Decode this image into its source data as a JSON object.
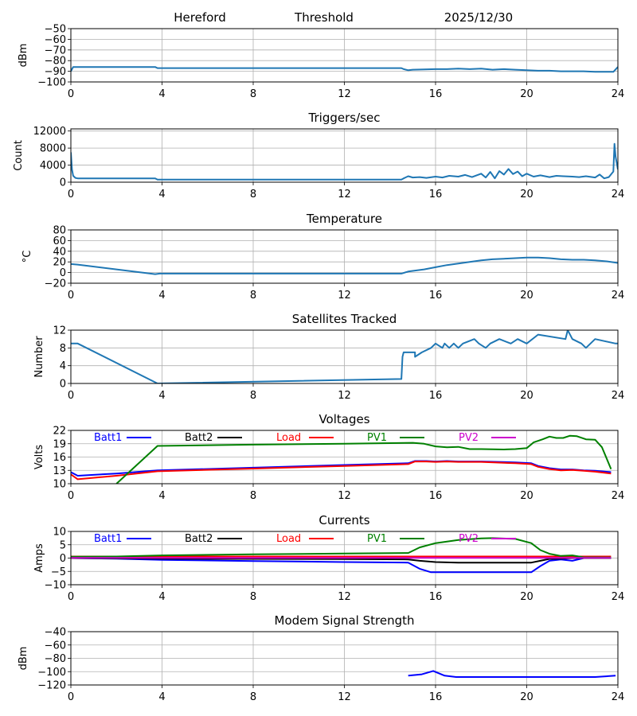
{
  "header": {
    "site": "Hereford",
    "mode": "Threshold",
    "date": "2025/12/30"
  },
  "chart_data": [
    {
      "id": "threshold",
      "type": "line",
      "title": "",
      "xlabel": "",
      "ylabel": "dBm",
      "xlim": [
        0,
        24
      ],
      "ylim": [
        -100,
        -50
      ],
      "xticks": [
        0,
        4,
        8,
        12,
        16,
        20,
        24
      ],
      "yticks": [
        -100,
        -90,
        -80,
        -70,
        -60,
        -50
      ],
      "ytick_labels": [
        "−100",
        "−90",
        "−80",
        "−70",
        "−60",
        "−50"
      ],
      "grid": true,
      "series": [
        {
          "name": "Threshold",
          "color": "#1f77b4",
          "x": [
            0,
            0.1,
            0.2,
            1,
            2,
            3,
            3.7,
            3.8,
            6,
            9,
            12,
            14.5,
            14.6,
            14.8,
            15,
            16,
            16.5,
            17,
            17.5,
            18,
            18.5,
            19,
            19.5,
            20,
            20.5,
            21,
            21.5,
            22,
            22.5,
            23,
            23.5,
            23.8,
            24
          ],
          "y": [
            -90,
            -86,
            -86,
            -86,
            -86,
            -86,
            -86,
            -87,
            -87,
            -87,
            -87,
            -87,
            -88,
            -89,
            -88.5,
            -88,
            -88,
            -87.5,
            -88,
            -87.5,
            -88.5,
            -88,
            -88.5,
            -89,
            -89.5,
            -89.5,
            -90,
            -90,
            -90,
            -90.5,
            -90.5,
            -90.5,
            -86
          ]
        }
      ]
    },
    {
      "id": "triggers",
      "type": "line",
      "title": "Triggers/sec",
      "xlabel": "",
      "ylabel": "Count",
      "xlim": [
        0,
        24
      ],
      "ylim": [
        0,
        12500
      ],
      "xticks": [
        0,
        4,
        8,
        12,
        16,
        20,
        24
      ],
      "yticks": [
        0,
        4000,
        8000,
        12000
      ],
      "ytick_labels": [
        "0",
        "4000",
        "8000",
        "12000"
      ],
      "grid": true,
      "series": [
        {
          "name": "Triggers",
          "color": "#1f77b4",
          "x": [
            0,
            0.05,
            0.1,
            0.2,
            0.3,
            1,
            2,
            3,
            3.7,
            3.8,
            6,
            9,
            12,
            14.5,
            14.6,
            14.8,
            15,
            15.3,
            15.6,
            16,
            16.3,
            16.6,
            17,
            17.3,
            17.6,
            18,
            18.2,
            18.4,
            18.6,
            18.8,
            19,
            19.2,
            19.4,
            19.6,
            19.8,
            20,
            20.3,
            20.6,
            21,
            21.3,
            21.6,
            22,
            22.3,
            22.6,
            23,
            23.2,
            23.4,
            23.6,
            23.8,
            23.85,
            23.9,
            24
          ],
          "y": [
            7000,
            3000,
            1500,
            1000,
            900,
            900,
            900,
            900,
            900,
            600,
            600,
            600,
            600,
            600,
            900,
            1400,
            1100,
            1200,
            1000,
            1300,
            1100,
            1500,
            1300,
            1700,
            1200,
            2000,
            1100,
            2400,
            900,
            2600,
            1800,
            3100,
            1900,
            2500,
            1400,
            2000,
            1300,
            1600,
            1200,
            1500,
            1400,
            1300,
            1200,
            1400,
            1100,
            1800,
            900,
            1200,
            2500,
            9000,
            6000,
            3000
          ]
        }
      ]
    },
    {
      "id": "temperature",
      "type": "line",
      "title": "Temperature",
      "xlabel": "",
      "ylabel": "°C",
      "xlim": [
        0,
        24
      ],
      "ylim": [
        -20,
        80
      ],
      "xticks": [
        0,
        4,
        8,
        12,
        16,
        20,
        24
      ],
      "yticks": [
        -20,
        0,
        20,
        40,
        60,
        80
      ],
      "ytick_labels": [
        "−20",
        "0",
        "20",
        "40",
        "60",
        "80"
      ],
      "grid": true,
      "series": [
        {
          "name": "Temperature",
          "color": "#1f77b4",
          "x": [
            0,
            0.3,
            3.7,
            3.9,
            6,
            9,
            12,
            14.5,
            14.8,
            15.5,
            16,
            16.5,
            17,
            17.5,
            18,
            18.5,
            19,
            19.5,
            20,
            20.5,
            21,
            21.5,
            22,
            22.5,
            23,
            23.5,
            24
          ],
          "y": [
            16,
            15,
            -3,
            -2,
            -2,
            -2,
            -2,
            -2,
            2,
            6,
            10,
            14,
            17,
            20,
            23,
            25,
            26,
            27,
            28,
            28,
            27,
            25,
            24,
            24,
            23,
            21,
            18
          ]
        }
      ]
    },
    {
      "id": "satellites",
      "type": "line",
      "title": "Satellites Tracked",
      "xlabel": "",
      "ylabel": "Number",
      "xlim": [
        0,
        24
      ],
      "ylim": [
        0,
        12
      ],
      "xticks": [
        0,
        4,
        8,
        12,
        16,
        20,
        24
      ],
      "yticks": [
        0,
        4,
        8,
        12
      ],
      "ytick_labels": [
        "0",
        "4",
        "8",
        "12"
      ],
      "grid": true,
      "series": [
        {
          "name": "Satellites",
          "color": "#1f77b4",
          "x": [
            0,
            0.3,
            3.8,
            14.5,
            14.55,
            14.6,
            14.7,
            15.1,
            15.1,
            15.4,
            15.4,
            15.8,
            15.8,
            16.0,
            16.0,
            16.3,
            16.3,
            16.4,
            16.4,
            16.6,
            16.6,
            16.8,
            16.8,
            17.0,
            17.0,
            17.2,
            17.2,
            17.7,
            17.7,
            17.9,
            17.9,
            18.2,
            18.2,
            18.4,
            18.4,
            18.8,
            18.8,
            19.3,
            19.3,
            19.6,
            19.6,
            20.0,
            20.0,
            20.5,
            20.5,
            21.7,
            21.8,
            21.9,
            22.0,
            22.0,
            22.4,
            22.4,
            22.6,
            22.6,
            23.0,
            23.0,
            23.9,
            24
          ],
          "y": [
            9,
            9,
            0,
            1,
            6,
            7,
            7,
            7,
            6,
            7,
            7,
            8,
            8,
            9,
            9,
            8,
            8,
            9,
            9,
            8,
            8,
            9,
            9,
            8,
            8,
            9,
            9,
            10,
            10,
            9,
            9,
            8,
            8,
            9,
            9,
            10,
            10,
            9,
            9,
            10,
            10,
            9,
            9,
            11,
            11,
            10,
            12,
            11,
            10,
            10,
            9,
            9,
            8,
            8,
            10,
            10,
            9,
            9
          ]
        }
      ]
    },
    {
      "id": "voltages",
      "type": "line",
      "title": "Voltages",
      "xlabel": "",
      "ylabel": "Volts",
      "xlim": [
        0,
        24
      ],
      "ylim": [
        10,
        22
      ],
      "xticks": [
        0,
        4,
        8,
        12,
        16,
        20,
        24
      ],
      "yticks": [
        10,
        13,
        16,
        19,
        22
      ],
      "ytick_labels": [
        "10",
        "13",
        "16",
        "19",
        "22"
      ],
      "grid": true,
      "legend": "top (inline row)",
      "series": [
        {
          "name": "Batt1",
          "color": "#0000ff",
          "x": [
            0,
            0.3,
            2,
            3.8,
            8,
            12,
            14.8,
            15.1,
            15.6,
            16,
            16.5,
            17,
            18,
            19.5,
            20.2,
            20.5,
            21,
            21.5,
            22,
            22.5,
            23,
            23.7
          ],
          "y": [
            12.6,
            11.8,
            12.3,
            13.0,
            13.6,
            14.2,
            14.6,
            15.1,
            15.1,
            15.0,
            15.1,
            15.0,
            15.0,
            14.8,
            14.6,
            14.0,
            13.5,
            13.2,
            13.2,
            13.0,
            12.9,
            12.6
          ]
        },
        {
          "name": "Batt2",
          "color": "#000000",
          "x": [],
          "y": []
        },
        {
          "name": "Load",
          "color": "#ff0000",
          "x": [
            0,
            0.3,
            2,
            3.8,
            8,
            12,
            14.8,
            15.1,
            15.6,
            16,
            16.5,
            17,
            18,
            19.5,
            20.2,
            20.5,
            21,
            21.5,
            22,
            22.5,
            23,
            23.7
          ],
          "y": [
            12.1,
            11.0,
            11.8,
            12.8,
            13.4,
            14.0,
            14.4,
            15.0,
            15.0,
            14.9,
            15.0,
            14.9,
            14.9,
            14.6,
            14.4,
            13.8,
            13.3,
            13.0,
            13.1,
            12.9,
            12.7,
            12.3
          ]
        },
        {
          "name": "PV1",
          "color": "#008000",
          "x": [
            2,
            3.8,
            8,
            12,
            15.0,
            15.5,
            16,
            16.5,
            17,
            17.5,
            18,
            19,
            19.5,
            20,
            20.3,
            20.7,
            21,
            21.3,
            21.6,
            21.9,
            22.2,
            22.6,
            23,
            23.3,
            23.7
          ],
          "y": [
            10,
            18.5,
            18.8,
            19.0,
            19.2,
            19.0,
            18.4,
            18.2,
            18.3,
            17.8,
            17.8,
            17.7,
            17.8,
            18.0,
            19.3,
            20.0,
            20.6,
            20.3,
            20.3,
            20.8,
            20.7,
            20.0,
            19.9,
            18.2,
            13.3
          ]
        },
        {
          "name": "PV2",
          "color": "#cc00cc",
          "x": [],
          "y": []
        }
      ]
    },
    {
      "id": "currents",
      "type": "line",
      "title": "Currents",
      "xlabel": "",
      "ylabel": "Amps",
      "xlim": [
        0,
        24
      ],
      "ylim": [
        -10,
        10
      ],
      "xticks": [
        0,
        4,
        8,
        12,
        16,
        20,
        24
      ],
      "yticks": [
        -10,
        -5,
        0,
        5,
        10
      ],
      "ytick_labels": [
        "−10",
        "−5",
        "0",
        "5",
        "10"
      ],
      "grid": true,
      "legend": "top (inline row)",
      "series": [
        {
          "name": "Batt1",
          "color": "#0000ff",
          "x": [
            0,
            2,
            4,
            8,
            12,
            14.8,
            15.3,
            15.8,
            16.5,
            20.2,
            20.6,
            21,
            21.5,
            22,
            22.5,
            23.7
          ],
          "y": [
            0,
            -0.2,
            -0.7,
            -1.1,
            -1.5,
            -1.7,
            -4.0,
            -5.3,
            -5.3,
            -5.3,
            -3.0,
            -1.0,
            -0.5,
            -1.0,
            0,
            0
          ]
        },
        {
          "name": "Batt2",
          "color": "#000000",
          "x": [
            0,
            4,
            8,
            12,
            14.8,
            15.3,
            16,
            17,
            20.2,
            20.6,
            21,
            21.5,
            22,
            23.7
          ],
          "y": [
            0,
            -0.2,
            -0.3,
            -0.4,
            -0.5,
            -1.0,
            -1.5,
            -1.7,
            -1.7,
            -1.0,
            -0.3,
            -0.2,
            0,
            0
          ]
        },
        {
          "name": "Load",
          "color": "#ff0000",
          "x": [
            0,
            23.7
          ],
          "y": [
            0.6,
            0.6
          ]
        },
        {
          "name": "PV1",
          "color": "#008000",
          "x": [
            0,
            2,
            4,
            8,
            12,
            14.8,
            15.3,
            16,
            17,
            18,
            18.5,
            19.5,
            20.2,
            20.6,
            21,
            21.5,
            22,
            22.5,
            23.7
          ],
          "y": [
            0.5,
            0.6,
            1.0,
            1.4,
            1.7,
            1.9,
            4.0,
            5.6,
            6.8,
            7.4,
            7.5,
            7.2,
            5.6,
            3.0,
            1.6,
            0.8,
            1.0,
            0.3,
            0.2
          ]
        },
        {
          "name": "PV2",
          "color": "#cc00cc",
          "x": [
            0,
            23.7
          ],
          "y": [
            0.1,
            0.1
          ]
        }
      ]
    },
    {
      "id": "modem",
      "type": "line",
      "title": "Modem Signal Strength",
      "xlabel": "",
      "ylabel": "dBm",
      "xlim": [
        0,
        24
      ],
      "ylim": [
        -120,
        -40
      ],
      "xticks": [
        0,
        4,
        8,
        12,
        16,
        20,
        24
      ],
      "yticks": [
        -120,
        -100,
        -80,
        -60,
        -40
      ],
      "ytick_labels": [
        "−120",
        "−100",
        "−80",
        "−60",
        "−40"
      ],
      "grid": true,
      "series": [
        {
          "name": "Modem",
          "color": "#0000ff",
          "x": [
            14.8,
            15.4,
            15.9,
            16.4,
            16.9,
            20,
            23,
            23.9
          ],
          "y": [
            -106,
            -104,
            -99,
            -106,
            -108,
            -108,
            -108,
            -106
          ]
        }
      ]
    }
  ]
}
